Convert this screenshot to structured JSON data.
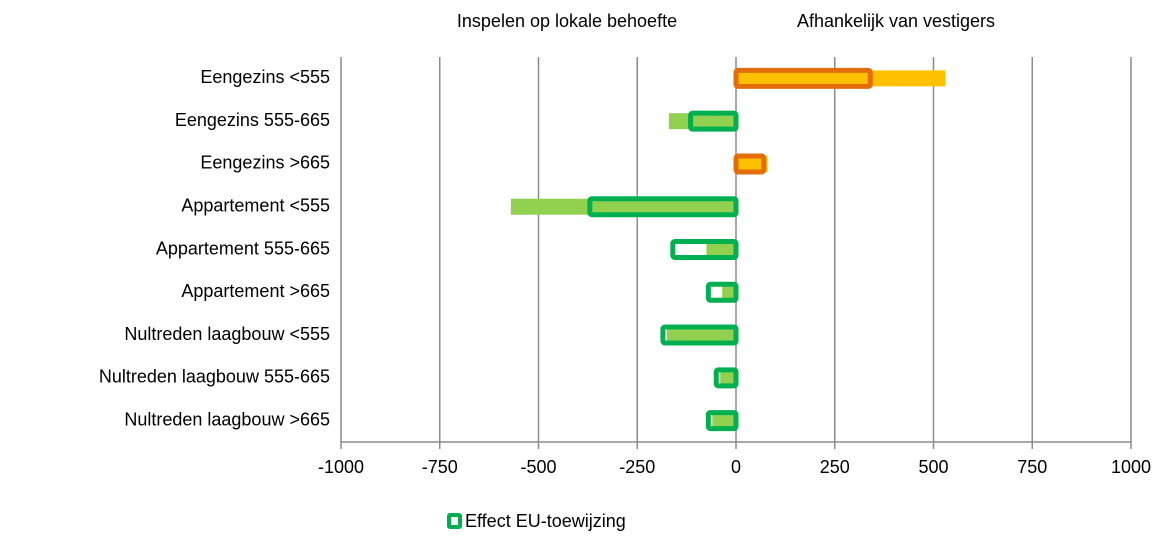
{
  "chart_data": {
    "type": "bar",
    "orientation": "horizontal",
    "annotations": [
      "Inspelen op lokale behoefte",
      "Afhankelijk van vestigers"
    ],
    "categories": [
      "Eengezins <555",
      "Eengezins 555-665",
      "Eengezins >665",
      "Appartement  <555",
      "Appartement  555-665",
      "Appartement  >665",
      "Nultreden laagbouw <555",
      "Nultreden laagbouw 555-665",
      "Nultreden laagbouw >665"
    ],
    "series": [
      {
        "style": "filled",
        "color": "#ffc000",
        "negative_color": "#92d050",
        "values": [
          530,
          -170,
          80,
          -570,
          -75,
          -35,
          -175,
          -40,
          -60
        ]
      },
      {
        "name": "Effect EU-toewijzing",
        "style": "outline",
        "color": "#e46c0a",
        "negative_color": "#00b050",
        "values": [
          340,
          -115,
          70,
          -370,
          -160,
          -70,
          -185,
          -50,
          -70
        ]
      }
    ],
    "xlim": [
      -1000,
      1000
    ],
    "xticks": [
      -1000,
      -750,
      -500,
      -250,
      0,
      250,
      500,
      750,
      1000
    ],
    "grid": true,
    "legend": "bottom"
  }
}
